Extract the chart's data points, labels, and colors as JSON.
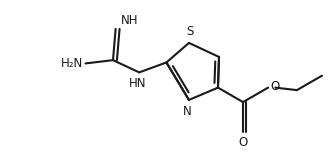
{
  "bg_color": "#ffffff",
  "line_color": "#1a1a1a",
  "line_width": 1.5,
  "font_size": 8.5,
  "fig_width": 3.32,
  "fig_height": 1.56,
  "dpi": 100,
  "xlim": [
    0,
    10
  ],
  "ylim": [
    0,
    4.7
  ]
}
